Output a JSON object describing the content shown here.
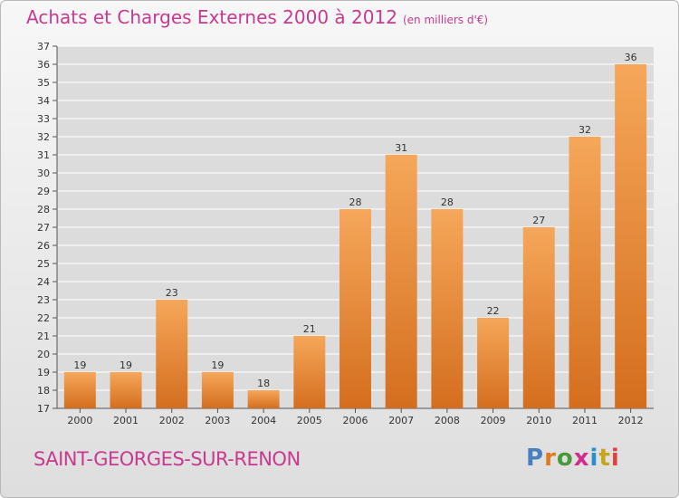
{
  "header": {
    "title": "Achats et Charges Externes 2000 à 2012",
    "unit": "(en milliers d'€)"
  },
  "footer": {
    "commune": "SAINT-GEORGES-SUR-RENON",
    "logo": "Proxiti"
  },
  "colors": {
    "bar_top": "#f6a75a",
    "bar_bottom": "#d46e1e",
    "title": "#c73a8f",
    "logo_letters": [
      "#4a7fc0",
      "#e07a1f",
      "#4a9a3a",
      "#d12e8b",
      "#2a8fd0",
      "#c8a51d",
      "#e04040"
    ]
  },
  "chart_data": {
    "type": "bar",
    "categories": [
      "2000",
      "2001",
      "2002",
      "2003",
      "2004",
      "2005",
      "2006",
      "2007",
      "2008",
      "2009",
      "2010",
      "2011",
      "2012"
    ],
    "values": [
      19,
      19,
      23,
      19,
      18,
      21,
      28,
      31,
      28,
      22,
      27,
      32,
      36
    ],
    "title": "Achats et Charges Externes 2000 à 2012",
    "ylabel": "",
    "xlabel": "",
    "ylim": [
      17,
      37
    ],
    "yticks": [
      17,
      18,
      19,
      20,
      21,
      22,
      23,
      24,
      25,
      26,
      27,
      28,
      29,
      30,
      31,
      32,
      33,
      34,
      35,
      36,
      37
    ],
    "grid": true
  }
}
